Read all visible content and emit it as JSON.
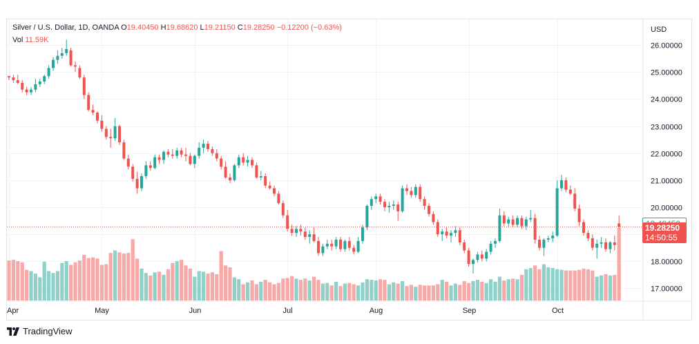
{
  "legend": {
    "symbol": "Silver / U.S. Dollar, 1D, OANDA",
    "o_label": "O",
    "o_value": "19.40450",
    "h_label": "H",
    "h_value": "19.68620",
    "l_label": "L",
    "l_value": "19.21150",
    "c_label": "C",
    "c_value": "19.28250",
    "change": "−0.12200 (−0.63%)",
    "vol_label": "Vol",
    "vol_value": "11.59K"
  },
  "price_tags": {
    "open": "19.40450",
    "close": "19.28250",
    "countdown": "14:50:55"
  },
  "brand": {
    "name": "TradingView",
    "icon": "tradingview-logo-icon"
  },
  "colors": {
    "up": "#26a69a",
    "down": "#ef5350",
    "vol_up": "#8fd1c9",
    "vol_down": "#f6a9a6",
    "grid": "#f0f3fa",
    "axis_text": "#131722"
  },
  "chart_data": {
    "type": "candlestick",
    "title": "Silver / U.S. Dollar, 1D, OANDA",
    "currency_label": "USD",
    "y_ticks": [
      "17.00000",
      "18.00000",
      "19.00000",
      "20.00000",
      "21.00000",
      "22.00000",
      "23.00000",
      "24.00000",
      "25.00000",
      "26.00000"
    ],
    "ylim": [
      16.55,
      26.95
    ],
    "x_ticks": [
      {
        "label": "Apr",
        "index": 0
      },
      {
        "label": "May",
        "index": 21
      },
      {
        "label": "Jun",
        "index": 42
      },
      {
        "label": "Jul",
        "index": 63
      },
      {
        "label": "Aug",
        "index": 83
      },
      {
        "label": "Sep",
        "index": 104
      },
      {
        "label": "Oct",
        "index": 124
      }
    ],
    "volume_max": 11.6,
    "candles": [
      [
        24.85,
        24.85,
        24.7,
        24.8,
        6.4
      ],
      [
        24.8,
        24.9,
        24.6,
        24.7,
        6.5
      ],
      [
        24.7,
        24.9,
        24.55,
        24.6,
        6.3
      ],
      [
        24.6,
        24.7,
        24.25,
        24.35,
        6.1
      ],
      [
        24.35,
        24.45,
        24.15,
        24.25,
        4.9
      ],
      [
        24.25,
        24.45,
        24.15,
        24.35,
        4.7
      ],
      [
        24.35,
        24.75,
        24.25,
        24.55,
        4.3
      ],
      [
        24.55,
        24.75,
        24.45,
        24.65,
        3.7
      ],
      [
        24.65,
        24.9,
        24.55,
        24.85,
        6.2
      ],
      [
        24.85,
        25.25,
        24.75,
        25.15,
        4.7
      ],
      [
        25.15,
        25.55,
        25.05,
        25.45,
        4.4
      ],
      [
        25.45,
        25.8,
        25.3,
        25.6,
        4.7
      ],
      [
        25.6,
        25.9,
        25.5,
        25.7,
        6.0
      ],
      [
        25.7,
        26.2,
        25.6,
        25.85,
        6.3
      ],
      [
        25.8,
        25.9,
        25.2,
        25.25,
        5.7
      ],
      [
        25.25,
        25.4,
        25.0,
        25.2,
        6.1
      ],
      [
        25.15,
        25.25,
        24.75,
        24.8,
        6.4
      ],
      [
        24.8,
        24.9,
        24.0,
        24.15,
        7.3
      ],
      [
        24.15,
        24.25,
        23.55,
        23.6,
        6.8
      ],
      [
        23.6,
        23.8,
        23.4,
        23.5,
        6.9
      ],
      [
        23.5,
        23.55,
        23.1,
        23.2,
        6.7
      ],
      [
        23.2,
        23.4,
        22.8,
        22.9,
        5.7
      ],
      [
        22.9,
        23.0,
        22.5,
        22.6,
        5.8
      ],
      [
        22.6,
        22.9,
        22.2,
        22.55,
        7.6
      ],
      [
        22.55,
        23.3,
        22.45,
        23.0,
        8.0
      ],
      [
        23.0,
        23.05,
        22.3,
        22.4,
        7.7
      ],
      [
        22.4,
        22.5,
        21.75,
        21.8,
        7.5
      ],
      [
        21.8,
        21.95,
        21.4,
        21.5,
        7.6
      ],
      [
        21.5,
        21.6,
        20.95,
        21.05,
        9.8
      ],
      [
        21.05,
        21.3,
        20.5,
        20.7,
        6.7
      ],
      [
        20.7,
        21.25,
        20.6,
        21.15,
        5.1
      ],
      [
        21.15,
        21.7,
        21.05,
        21.55,
        4.4
      ],
      [
        21.55,
        21.7,
        21.35,
        21.45,
        4.0
      ],
      [
        21.45,
        21.95,
        21.4,
        21.85,
        4.5
      ],
      [
        21.85,
        21.95,
        21.6,
        21.75,
        4.6
      ],
      [
        21.75,
        22.1,
        21.6,
        22.05,
        4.1
      ],
      [
        22.05,
        22.15,
        21.85,
        21.95,
        5.0
      ],
      [
        21.95,
        22.15,
        21.8,
        21.9,
        6.0
      ],
      [
        21.9,
        22.2,
        21.8,
        22.1,
        6.3
      ],
      [
        22.1,
        22.2,
        21.85,
        21.95,
        6.5
      ],
      [
        21.95,
        22.2,
        21.7,
        21.9,
        5.6
      ],
      [
        21.9,
        22.0,
        21.55,
        21.6,
        5.1
      ],
      [
        21.6,
        21.95,
        21.45,
        21.9,
        3.8
      ],
      [
        21.9,
        22.4,
        21.8,
        22.2,
        4.7
      ],
      [
        22.2,
        22.5,
        22.0,
        22.35,
        4.6
      ],
      [
        22.35,
        22.45,
        22.05,
        22.15,
        4.3
      ],
      [
        22.15,
        22.25,
        21.9,
        22.0,
        4.5
      ],
      [
        22.0,
        22.15,
        21.7,
        21.8,
        4.2
      ],
      [
        21.8,
        21.9,
        21.4,
        21.5,
        7.9
      ],
      [
        21.5,
        21.7,
        21.05,
        21.1,
        5.6
      ],
      [
        21.1,
        21.25,
        20.9,
        21.0,
        5.3
      ],
      [
        21.0,
        21.6,
        20.95,
        21.55,
        3.7
      ],
      [
        21.55,
        21.95,
        21.45,
        21.85,
        3.4
      ],
      [
        21.85,
        22.0,
        21.55,
        21.65,
        2.6
      ],
      [
        21.65,
        21.9,
        21.5,
        21.75,
        2.9
      ],
      [
        21.75,
        21.85,
        21.45,
        21.55,
        3.2
      ],
      [
        21.55,
        21.65,
        21.05,
        21.1,
        2.6
      ],
      [
        21.1,
        21.35,
        21.0,
        21.15,
        3.0
      ],
      [
        21.15,
        21.25,
        20.7,
        20.8,
        3.3
      ],
      [
        20.8,
        20.95,
        20.65,
        20.7,
        2.9
      ],
      [
        20.7,
        20.8,
        20.4,
        20.5,
        2.6
      ],
      [
        20.5,
        20.6,
        20.1,
        20.15,
        2.8
      ],
      [
        20.15,
        20.25,
        19.6,
        19.7,
        3.5
      ],
      [
        19.7,
        19.9,
        19.1,
        19.2,
        3.6
      ],
      [
        19.2,
        19.35,
        18.95,
        19.05,
        3.9
      ],
      [
        19.05,
        19.3,
        18.9,
        19.2,
        3.5
      ],
      [
        19.2,
        19.35,
        18.95,
        19.1,
        3.3
      ],
      [
        19.1,
        19.25,
        18.8,
        18.9,
        3.5
      ],
      [
        18.9,
        19.15,
        18.65,
        19.0,
        3.2
      ],
      [
        19.0,
        19.25,
        18.7,
        18.75,
        3.8
      ],
      [
        18.75,
        18.9,
        18.2,
        18.3,
        3.3
      ],
      [
        18.3,
        18.65,
        18.2,
        18.55,
        2.7
      ],
      [
        18.55,
        18.8,
        18.45,
        18.65,
        2.8
      ],
      [
        18.65,
        18.8,
        18.4,
        18.55,
        2.4
      ],
      [
        18.55,
        18.9,
        18.45,
        18.8,
        3.0
      ],
      [
        18.8,
        18.9,
        18.35,
        18.45,
        2.3
      ],
      [
        18.45,
        18.8,
        18.35,
        18.75,
        2.7
      ],
      [
        18.75,
        18.9,
        18.4,
        18.5,
        2.8
      ],
      [
        18.5,
        18.6,
        18.25,
        18.35,
        2.6
      ],
      [
        18.35,
        18.9,
        18.3,
        18.75,
        2.4
      ],
      [
        18.75,
        19.35,
        18.65,
        19.25,
        2.9
      ],
      [
        19.25,
        20.1,
        19.15,
        20.05,
        3.4
      ],
      [
        20.05,
        20.4,
        19.9,
        20.3,
        3.3
      ],
      [
        20.3,
        20.5,
        20.15,
        20.4,
        3.2
      ],
      [
        20.4,
        20.5,
        20.1,
        20.2,
        3.4
      ],
      [
        20.2,
        20.3,
        19.85,
        20.0,
        3.3
      ],
      [
        20.0,
        20.2,
        19.8,
        20.05,
        2.6
      ],
      [
        20.05,
        20.25,
        19.9,
        20.1,
        2.9
      ],
      [
        20.1,
        20.2,
        19.5,
        19.85,
        2.7
      ],
      [
        19.85,
        20.8,
        19.8,
        20.7,
        3.1
      ],
      [
        20.7,
        20.85,
        20.45,
        20.6,
        2.3
      ],
      [
        20.6,
        20.75,
        20.35,
        20.45,
        2.5
      ],
      [
        20.45,
        20.85,
        20.35,
        20.75,
        2.2
      ],
      [
        20.75,
        20.85,
        20.2,
        20.3,
        2.5
      ],
      [
        20.3,
        20.4,
        19.9,
        20.05,
        2.4
      ],
      [
        20.05,
        20.15,
        19.65,
        19.75,
        2.4
      ],
      [
        19.75,
        19.85,
        19.35,
        19.45,
        2.4
      ],
      [
        19.45,
        19.55,
        18.9,
        19.0,
        2.6
      ],
      [
        19.0,
        19.2,
        18.75,
        19.1,
        3.3
      ],
      [
        19.1,
        19.25,
        18.85,
        18.95,
        3.0
      ],
      [
        18.95,
        19.15,
        18.7,
        19.05,
        2.4
      ],
      [
        19.05,
        19.3,
        18.9,
        19.15,
        2.7
      ],
      [
        19.15,
        19.25,
        18.6,
        18.7,
        2.5
      ],
      [
        18.7,
        18.8,
        18.3,
        18.4,
        3.1
      ],
      [
        18.4,
        18.5,
        17.8,
        17.9,
        2.8
      ],
      [
        17.9,
        18.1,
        17.55,
        18.05,
        3.1
      ],
      [
        18.05,
        18.35,
        17.95,
        18.25,
        3.3
      ],
      [
        18.25,
        18.4,
        18.0,
        18.1,
        3.0
      ],
      [
        18.1,
        18.45,
        18.0,
        18.35,
        2.8
      ],
      [
        18.35,
        18.75,
        18.25,
        18.65,
        3.4
      ],
      [
        18.65,
        18.85,
        18.5,
        18.75,
        3.0
      ],
      [
        18.75,
        19.95,
        18.7,
        19.7,
        3.8
      ],
      [
        19.7,
        19.85,
        19.3,
        19.4,
        3.2
      ],
      [
        19.4,
        19.65,
        19.25,
        19.55,
        3.4
      ],
      [
        19.55,
        19.7,
        19.25,
        19.35,
        3.5
      ],
      [
        19.35,
        19.7,
        19.25,
        19.6,
        3.4
      ],
      [
        19.6,
        19.7,
        19.2,
        19.3,
        4.1
      ],
      [
        19.3,
        19.65,
        19.15,
        19.55,
        5.0
      ],
      [
        19.55,
        19.9,
        19.45,
        19.6,
        5.2
      ],
      [
        19.6,
        19.75,
        18.65,
        18.8,
        5.6
      ],
      [
        18.8,
        18.95,
        18.4,
        18.5,
        5.0
      ],
      [
        18.5,
        18.85,
        18.2,
        18.8,
        5.8
      ],
      [
        18.8,
        18.95,
        18.7,
        18.85,
        5.3
      ],
      [
        18.85,
        19.1,
        18.7,
        18.95,
        5.2
      ],
      [
        18.95,
        21.0,
        18.9,
        20.7,
        5.0
      ],
      [
        20.7,
        21.2,
        20.6,
        21.0,
        4.9
      ],
      [
        21.0,
        21.1,
        20.55,
        20.65,
        4.8
      ],
      [
        20.65,
        20.8,
        20.45,
        20.5,
        4.8
      ],
      [
        20.5,
        20.7,
        19.85,
        19.95,
        4.8
      ],
      [
        19.95,
        20.1,
        19.3,
        19.45,
        4.9
      ],
      [
        19.45,
        19.55,
        18.95,
        19.05,
        5.1
      ],
      [
        19.05,
        19.15,
        18.75,
        18.85,
        5.0
      ],
      [
        18.85,
        19.0,
        18.4,
        18.5,
        4.8
      ],
      [
        18.5,
        18.8,
        18.1,
        18.65,
        3.8
      ],
      [
        18.65,
        18.9,
        18.5,
        18.7,
        4.0
      ],
      [
        18.7,
        18.85,
        18.35,
        18.45,
        4.2
      ],
      [
        18.45,
        18.75,
        18.3,
        18.7,
        4.0
      ],
      [
        18.7,
        18.95,
        18.4,
        18.6,
        4.1
      ],
      [
        19.4,
        19.69,
        19.21,
        19.28,
        11.59
      ]
    ]
  }
}
